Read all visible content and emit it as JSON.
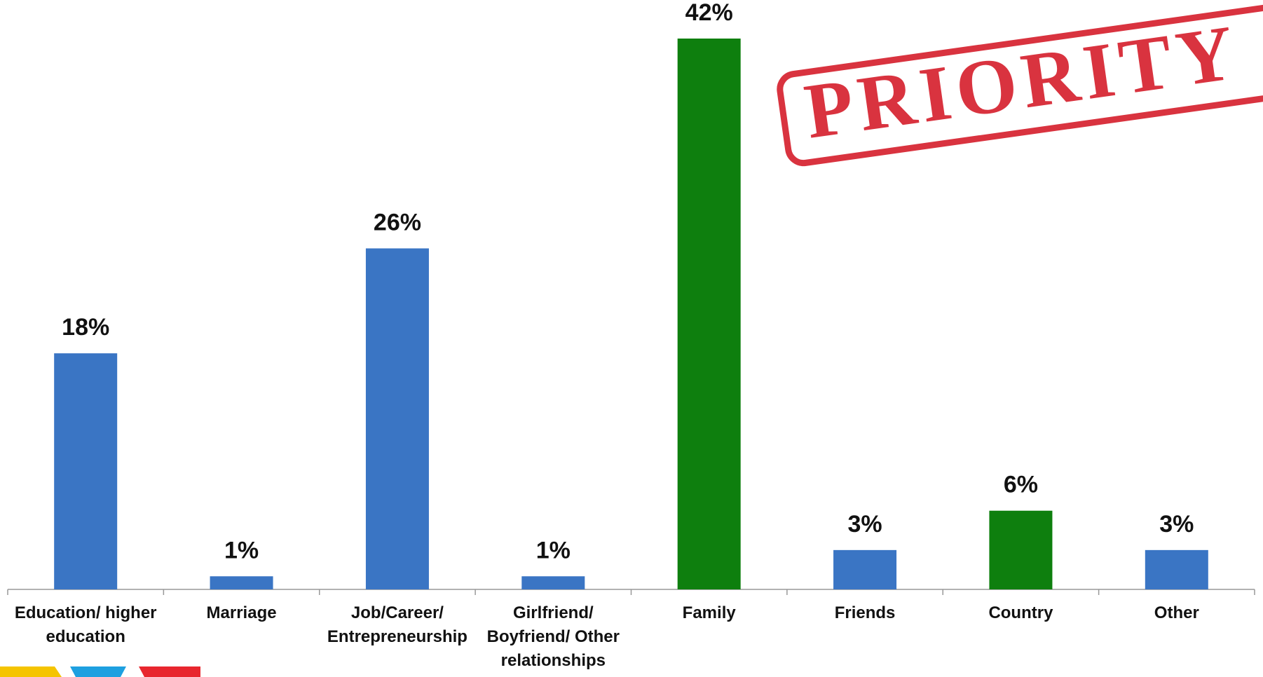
{
  "chart_data": {
    "type": "bar",
    "categories": [
      "Education/ higher education",
      "Marriage",
      "Job/Career/ Entrepreneurship",
      "Girlfriend/ Boyfriend/ Other relationships",
      "Family",
      "Friends",
      "Country",
      "Other"
    ],
    "values": [
      18,
      1,
      26,
      1,
      42,
      3,
      6,
      3
    ],
    "value_labels": [
      "18%",
      "1%",
      "26%",
      "1%",
      "42%",
      "3%",
      "6%",
      "3%"
    ],
    "colors": [
      "#3a75c4",
      "#3a75c4",
      "#3a75c4",
      "#3a75c4",
      "#0e7f0e",
      "#3a75c4",
      "#0e7f0e",
      "#3a75c4"
    ],
    "stamp_text": "PRIORITY"
  }
}
